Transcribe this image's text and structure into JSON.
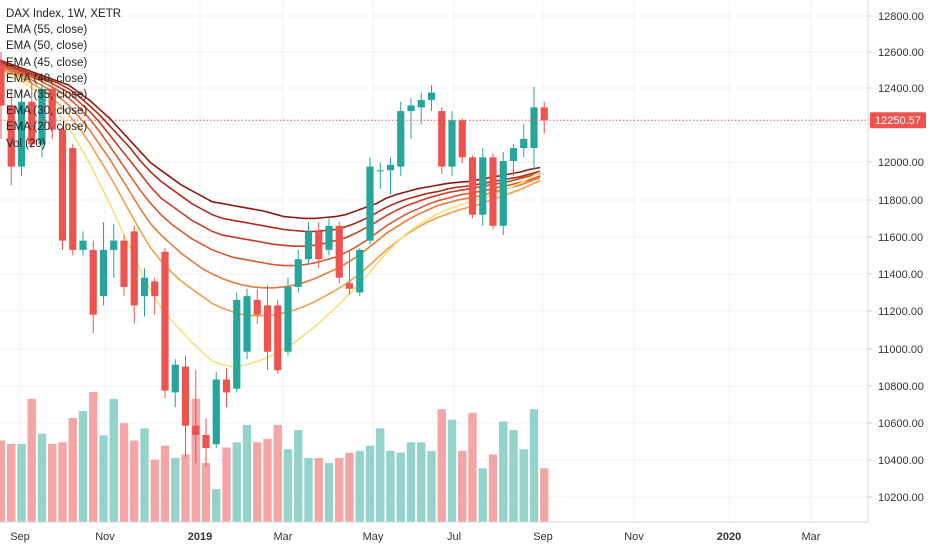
{
  "chart_data": {
    "type": "candlestick",
    "title": "DAX Index, 1W, XETR",
    "indicators": [
      "EMA (55, close)",
      "EMA (50, close)",
      "EMA (45, close)",
      "EMA (40, close)",
      "EMA (35, close)",
      "EMA (30, close)",
      "EMA (20, close)",
      "Vol (20)"
    ],
    "ema_colors": [
      "#8b1a0e",
      "#b02a17",
      "#c83e22",
      "#d85a2c",
      "#e57b3a",
      "#f0a04d",
      "#f5e27a"
    ],
    "up_color": "#26a69a",
    "down_color": "#ef5350",
    "vol_up_color": "#93d3cc",
    "vol_down_color": "#f4a6a6",
    "last_price": "12250.57",
    "last_price_color": "#ef5350",
    "ylim": [
      10080,
      12900
    ],
    "yticks": [
      "12800.00",
      "12600.00",
      "12400.00",
      "12200.00",
      "12000.00",
      "11800.00",
      "11600.00",
      "11400.00",
      "11200.00",
      "11000.00",
      "10800.00",
      "10600.00",
      "10400.00",
      "10200.00"
    ],
    "xticks": [
      "Sep",
      "Nov",
      "2019",
      "Mar",
      "May",
      "Jul",
      "Sep",
      "Nov",
      "2020",
      "Mar"
    ],
    "candles": [
      {
        "o": 12550,
        "h": 12620,
        "l": 12150,
        "c": 12330
      },
      {
        "o": 12330,
        "h": 12420,
        "l": 11900,
        "c": 12000
      },
      {
        "o": 12000,
        "h": 12420,
        "l": 11950,
        "c": 12350
      },
      {
        "o": 12350,
        "h": 12460,
        "l": 12100,
        "c": 12120
      },
      {
        "o": 12120,
        "h": 12450,
        "l": 12050,
        "c": 12420
      },
      {
        "o": 12420,
        "h": 12440,
        "l": 12150,
        "c": 12200
      },
      {
        "o": 12200,
        "h": 12220,
        "l": 11550,
        "c": 11600
      },
      {
        "o": 12100,
        "h": 12120,
        "l": 11520,
        "c": 11550
      },
      {
        "o": 11550,
        "h": 11650,
        "l": 11520,
        "c": 11600
      },
      {
        "o": 11550,
        "h": 11600,
        "l": 11100,
        "c": 11200
      },
      {
        "o": 11300,
        "h": 11700,
        "l": 11250,
        "c": 11550
      },
      {
        "o": 11550,
        "h": 11690,
        "l": 11400,
        "c": 11600
      },
      {
        "o": 11600,
        "h": 11630,
        "l": 11300,
        "c": 11350
      },
      {
        "o": 11650,
        "h": 11680,
        "l": 11150,
        "c": 11250
      },
      {
        "o": 11300,
        "h": 11450,
        "l": 11190,
        "c": 11400
      },
      {
        "o": 11380,
        "h": 11400,
        "l": 11200,
        "c": 11300
      },
      {
        "o": 11540,
        "h": 11560,
        "l": 10750,
        "c": 10790
      },
      {
        "o": 10780,
        "h": 10960,
        "l": 10700,
        "c": 10930
      },
      {
        "o": 10920,
        "h": 10980,
        "l": 10430,
        "c": 10600
      },
      {
        "o": 10600,
        "h": 10900,
        "l": 10400,
        "c": 10550
      },
      {
        "o": 10550,
        "h": 10640,
        "l": 10380,
        "c": 10480
      },
      {
        "o": 10500,
        "h": 10890,
        "l": 10480,
        "c": 10850
      },
      {
        "o": 10850,
        "h": 10910,
        "l": 10700,
        "c": 10780
      },
      {
        "o": 10800,
        "h": 11320,
        "l": 10780,
        "c": 11280
      },
      {
        "o": 11000,
        "h": 11340,
        "l": 10960,
        "c": 11300
      },
      {
        "o": 11280,
        "h": 11340,
        "l": 11150,
        "c": 11200
      },
      {
        "o": 11250,
        "h": 11360,
        "l": 10900,
        "c": 11000
      },
      {
        "o": 11250,
        "h": 11280,
        "l": 10880,
        "c": 10900
      },
      {
        "o": 11000,
        "h": 11400,
        "l": 10980,
        "c": 11350
      },
      {
        "o": 11350,
        "h": 11550,
        "l": 11320,
        "c": 11500
      },
      {
        "o": 11500,
        "h": 11700,
        "l": 11480,
        "c": 11650
      },
      {
        "o": 11650,
        "h": 11700,
        "l": 11450,
        "c": 11500
      },
      {
        "o": 11550,
        "h": 11720,
        "l": 11520,
        "c": 11680
      },
      {
        "o": 11680,
        "h": 11700,
        "l": 11370,
        "c": 11400
      },
      {
        "o": 11370,
        "h": 11550,
        "l": 11310,
        "c": 11340
      },
      {
        "o": 11320,
        "h": 11560,
        "l": 11300,
        "c": 11550
      },
      {
        "o": 11600,
        "h": 12050,
        "l": 11580,
        "c": 12000
      },
      {
        "o": 11980,
        "h": 12020,
        "l": 11880,
        "c": 11980
      },
      {
        "o": 11980,
        "h": 12050,
        "l": 11850,
        "c": 12010
      },
      {
        "o": 12000,
        "h": 12350,
        "l": 11950,
        "c": 12300
      },
      {
        "o": 12300,
        "h": 12370,
        "l": 12150,
        "c": 12330
      },
      {
        "o": 12320,
        "h": 12400,
        "l": 12230,
        "c": 12360
      },
      {
        "o": 12360,
        "h": 12440,
        "l": 12300,
        "c": 12400
      },
      {
        "o": 12300,
        "h": 12320,
        "l": 11960,
        "c": 12000
      },
      {
        "o": 12000,
        "h": 12300,
        "l": 11950,
        "c": 12250
      },
      {
        "o": 12250,
        "h": 12260,
        "l": 12020,
        "c": 12050
      },
      {
        "o": 12050,
        "h": 12060,
        "l": 11720,
        "c": 11740
      },
      {
        "o": 11740,
        "h": 12100,
        "l": 11680,
        "c": 12050
      },
      {
        "o": 12050,
        "h": 12070,
        "l": 11660,
        "c": 11680
      },
      {
        "o": 11680,
        "h": 12080,
        "l": 11630,
        "c": 12030
      },
      {
        "o": 12030,
        "h": 12120,
        "l": 11950,
        "c": 12100
      },
      {
        "o": 12100,
        "h": 12230,
        "l": 12050,
        "c": 12150
      },
      {
        "o": 12100,
        "h": 12430,
        "l": 11980,
        "c": 12320
      },
      {
        "o": 12320,
        "h": 12350,
        "l": 12180,
        "c": 12250
      }
    ],
    "volumes": [
      47,
      45,
      45,
      71,
      51,
      45,
      46,
      60,
      64,
      75,
      50,
      71,
      57,
      47,
      54,
      36,
      44,
      37,
      39,
      71,
      34,
      19,
      43,
      46,
      56,
      46,
      48,
      56,
      42,
      53,
      37,
      37,
      34,
      37,
      40,
      41,
      44,
      54,
      41,
      40,
      46,
      46,
      41,
      65,
      59,
      41,
      63,
      31,
      39,
      58,
      53,
      42,
      65,
      31
    ],
    "ema_series": {
      "ema55": [
        12580,
        12560,
        12540,
        12520,
        12500,
        12480,
        12460,
        12440,
        12400,
        12360,
        12310,
        12260,
        12200,
        12140,
        12080,
        12020,
        11980,
        11940,
        11900,
        11870,
        11840,
        11810,
        11800,
        11790,
        11780,
        11770,
        11760,
        11745,
        11730,
        11725,
        11720,
        11720,
        11725,
        11730,
        11740,
        11760,
        11780,
        11800,
        11830,
        11850,
        11865,
        11880,
        11890,
        11900,
        11910,
        11915,
        11920,
        11930,
        11940,
        11950,
        11960,
        11970,
        11985,
        11995
      ],
      "ema50": [
        12570,
        12550,
        12530,
        12510,
        12490,
        12470,
        12450,
        12420,
        12380,
        12330,
        12280,
        12220,
        12160,
        12100,
        12030,
        11970,
        11920,
        11880,
        11840,
        11800,
        11770,
        11740,
        11720,
        11710,
        11700,
        11690,
        11680,
        11670,
        11660,
        11655,
        11650,
        11650,
        11655,
        11660,
        11675,
        11695,
        11720,
        11750,
        11780,
        11805,
        11825,
        11840,
        11855,
        11865,
        11880,
        11890,
        11895,
        11905,
        11915,
        11925,
        11935,
        11945,
        11960,
        11975
      ],
      "ema45": [
        12560,
        12540,
        12520,
        12500,
        12480,
        12460,
        12430,
        12400,
        12350,
        12300,
        12240,
        12170,
        12100,
        12030,
        11960,
        11890,
        11830,
        11790,
        11750,
        11710,
        11680,
        11650,
        11630,
        11620,
        11610,
        11600,
        11590,
        11580,
        11575,
        11570,
        11570,
        11575,
        11585,
        11600,
        11615,
        11640,
        11670,
        11700,
        11735,
        11765,
        11790,
        11810,
        11830,
        11845,
        11860,
        11870,
        11880,
        11890,
        11900,
        11910,
        11920,
        11935,
        11950,
        11965
      ],
      "ema40": [
        12550,
        12530,
        12510,
        12490,
        12470,
        12440,
        12410,
        12370,
        12320,
        12260,
        12190,
        12110,
        12030,
        11950,
        11870,
        11800,
        11740,
        11690,
        11650,
        11610,
        11580,
        11550,
        11530,
        11510,
        11500,
        11490,
        11480,
        11470,
        11465,
        11465,
        11470,
        11480,
        11495,
        11510,
        11535,
        11565,
        11600,
        11640,
        11680,
        11715,
        11745,
        11770,
        11795,
        11815,
        11830,
        11845,
        11855,
        11865,
        11875,
        11890,
        11900,
        11915,
        11930,
        11950
      ],
      "ema35": [
        12540,
        12520,
        12500,
        12480,
        12450,
        12420,
        12380,
        12330,
        12270,
        12200,
        12120,
        12040,
        11950,
        11860,
        11770,
        11690,
        11630,
        11580,
        11530,
        11490,
        11450,
        11420,
        11395,
        11375,
        11360,
        11350,
        11345,
        11345,
        11350,
        11360,
        11375,
        11395,
        11420,
        11445,
        11475,
        11510,
        11550,
        11595,
        11640,
        11675,
        11710,
        11740,
        11765,
        11790,
        11805,
        11820,
        11830,
        11840,
        11855,
        11870,
        11885,
        11900,
        11920,
        11940
      ],
      "ema30": [
        12530,
        12510,
        12490,
        12460,
        12430,
        12390,
        12340,
        12280,
        12210,
        12130,
        12040,
        11950,
        11850,
        11750,
        11650,
        11560,
        11490,
        11430,
        11380,
        11340,
        11300,
        11260,
        11235,
        11215,
        11200,
        11195,
        11195,
        11200,
        11210,
        11225,
        11245,
        11270,
        11300,
        11330,
        11365,
        11405,
        11450,
        11500,
        11550,
        11595,
        11635,
        11670,
        11700,
        11725,
        11745,
        11765,
        11780,
        11795,
        11815,
        11835,
        11855,
        11875,
        11900,
        11925
      ],
      "ema20": [
        12510,
        12490,
        12470,
        12440,
        12400,
        12350,
        12290,
        12210,
        12120,
        12020,
        11910,
        11800,
        11680,
        11560,
        11440,
        11330,
        11240,
        11170,
        11110,
        11050,
        11000,
        10950,
        10930,
        10920,
        10925,
        10940,
        10960,
        10985,
        11015,
        11050,
        11090,
        11135,
        11185,
        11235,
        11290,
        11345,
        11405,
        11470,
        11535,
        11590,
        11640,
        11680,
        11715,
        11745,
        11770,
        11790,
        11810,
        11825,
        11840,
        11860,
        11885,
        11910,
        11940,
        11970
      ]
    }
  }
}
